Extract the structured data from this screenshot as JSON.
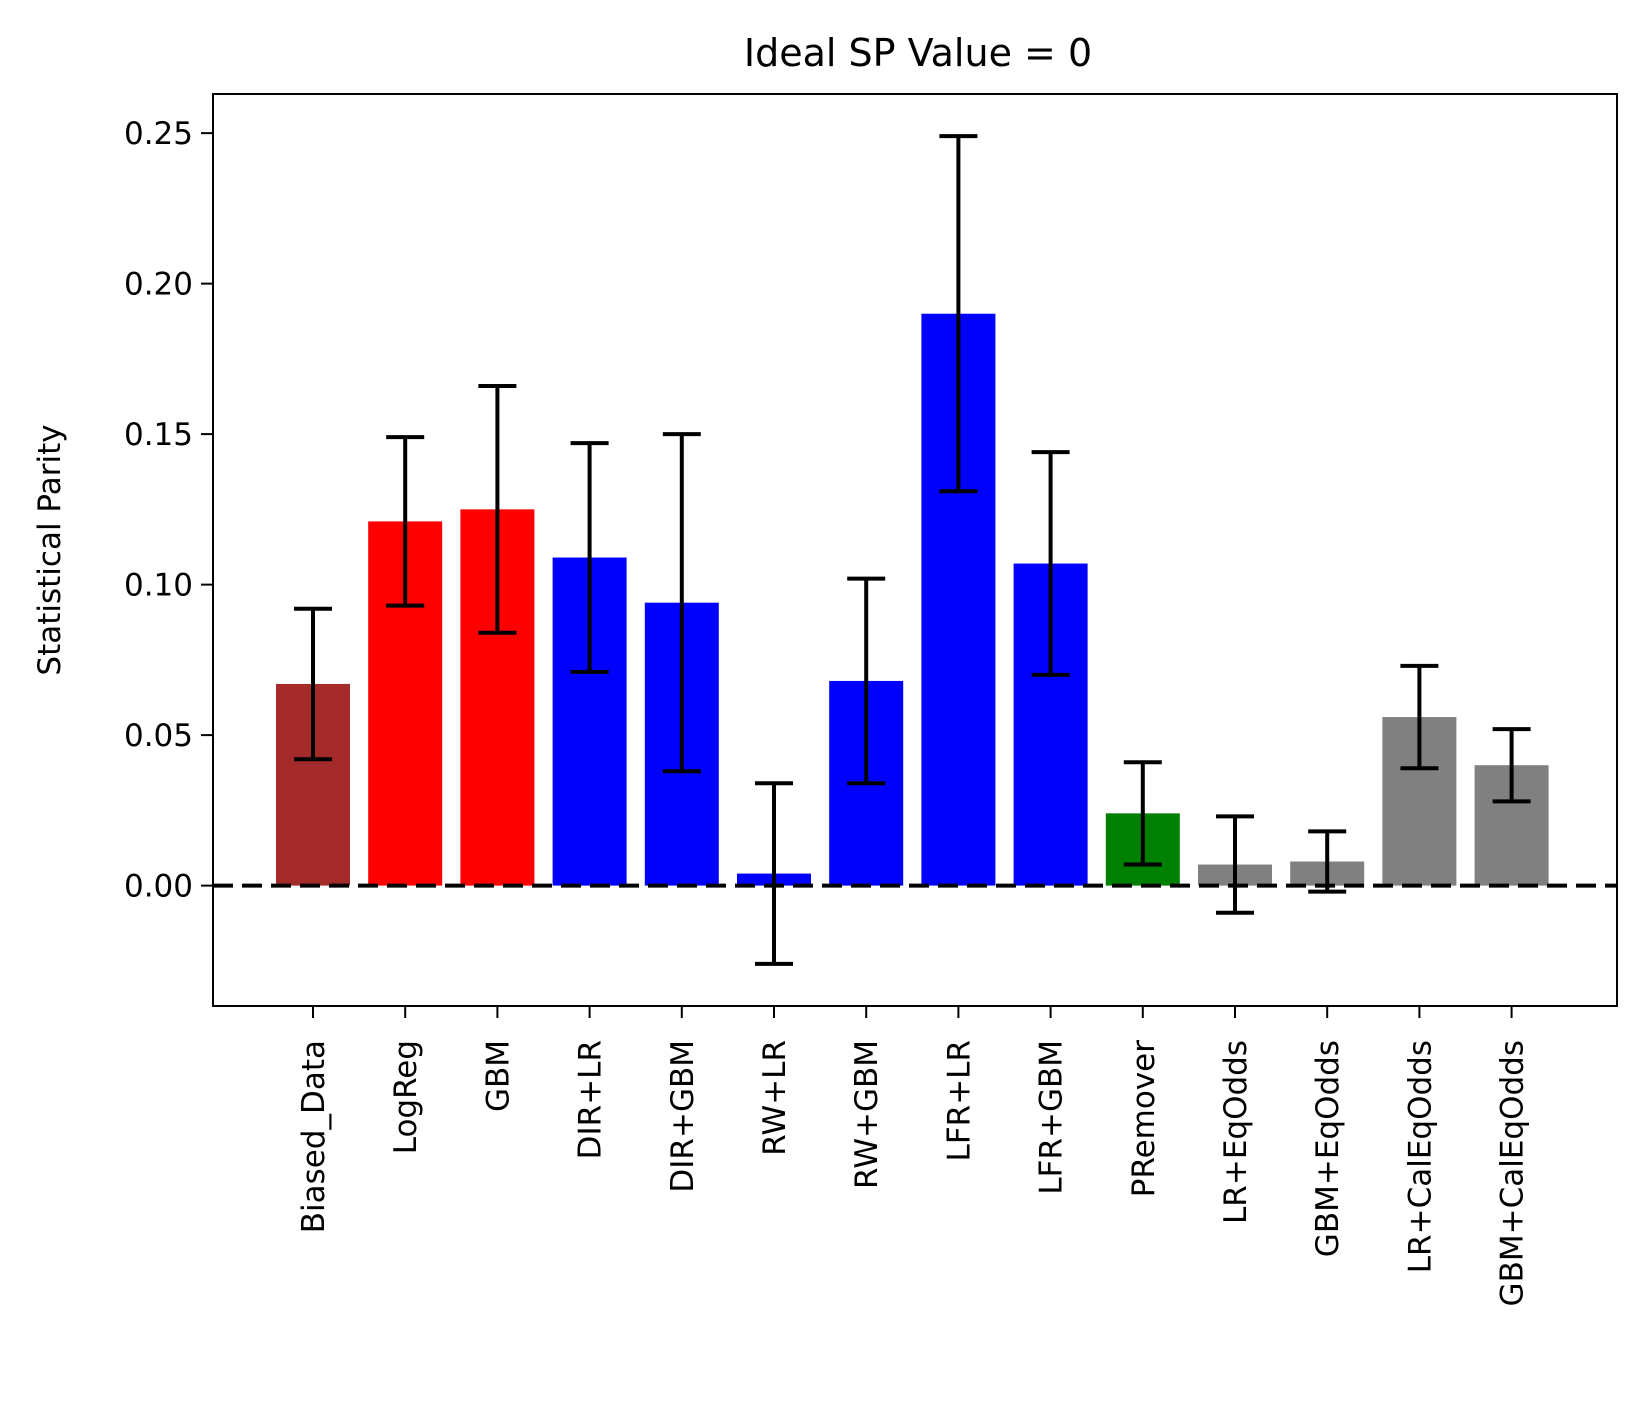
{
  "chart_data": {
    "type": "bar",
    "title": "Ideal SP Value = 0",
    "xlabel": "",
    "ylabel": "Statistical Parity",
    "ylim": [
      -0.04,
      0.263
    ],
    "yticks": [
      "0.00",
      "0.05",
      "0.10",
      "0.15",
      "0.20",
      "0.25"
    ],
    "ytick_values": [
      0.0,
      0.05,
      0.1,
      0.15,
      0.2,
      0.25
    ],
    "reference_line": {
      "y": 0.0,
      "style": "dashed",
      "color": "#000000"
    },
    "categories": [
      "Biased_Data",
      "LogReg",
      "GBM",
      "DIR+LR",
      "DIR+GBM",
      "RW+LR",
      "RW+GBM",
      "LFR+LR",
      "LFR+GBM",
      "PRemover",
      "LR+EqOdds",
      "GBM+EqOdds",
      "LR+CalEqOdds",
      "GBM+CalEqOdds"
    ],
    "values": [
      0.067,
      0.121,
      0.125,
      0.109,
      0.094,
      0.004,
      0.068,
      0.19,
      0.107,
      0.024,
      0.007,
      0.008,
      0.056,
      0.04
    ],
    "errors": [
      0.025,
      0.028,
      0.041,
      0.038,
      0.056,
      0.03,
      0.034,
      0.059,
      0.037,
      0.017,
      0.016,
      0.01,
      0.017,
      0.012
    ],
    "colors": [
      "#a52a2a",
      "#ff0000",
      "#ff0000",
      "#0000ff",
      "#0000ff",
      "#0000ff",
      "#0000ff",
      "#0000ff",
      "#0000ff",
      "#008000",
      "#808080",
      "#808080",
      "#808080",
      "#808080"
    ],
    "grid": false
  }
}
